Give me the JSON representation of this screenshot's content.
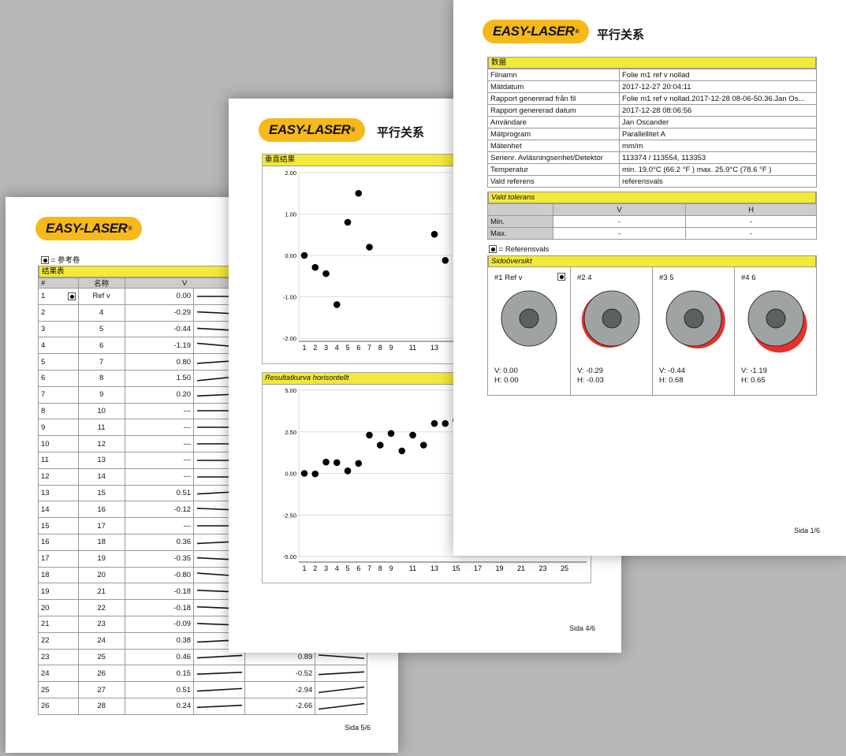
{
  "logo_text": "EASY-LASER",
  "logo_mark": "®",
  "colors": {
    "highlight": "#f2e938",
    "logo": "#f6b919",
    "offset": "#e8302a",
    "outer": "#a0a3a4",
    "inner": "#5d6061"
  },
  "page5": {
    "ref_legend": "= 参考卷",
    "section": "结果表",
    "headers": {
      "num": "#",
      "name": "名称",
      "v": "V"
    },
    "rows": [
      {
        "n": "1",
        "name": "Ref v",
        "v": "0.00",
        "h": "",
        "ref": true
      },
      {
        "n": "2",
        "name": "4",
        "v": "-0.29",
        "h": ""
      },
      {
        "n": "3",
        "name": "5",
        "v": "-0.44",
        "h": ""
      },
      {
        "n": "4",
        "name": "6",
        "v": "-1.19",
        "h": ""
      },
      {
        "n": "5",
        "name": "7",
        "v": "0.80",
        "h": ""
      },
      {
        "n": "6",
        "name": "8",
        "v": "1.50",
        "h": ""
      },
      {
        "n": "7",
        "name": "9",
        "v": "0.20",
        "h": ""
      },
      {
        "n": "8",
        "name": "10",
        "v": "---",
        "h": ""
      },
      {
        "n": "9",
        "name": "11",
        "v": "---",
        "h": ""
      },
      {
        "n": "10",
        "name": "12",
        "v": "---",
        "h": ""
      },
      {
        "n": "11",
        "name": "13",
        "v": "---",
        "h": ""
      },
      {
        "n": "12",
        "name": "14",
        "v": "---",
        "h": ""
      },
      {
        "n": "13",
        "name": "15",
        "v": "0.51",
        "h": ""
      },
      {
        "n": "14",
        "name": "16",
        "v": "-0.12",
        "h": ""
      },
      {
        "n": "15",
        "name": "17",
        "v": "---",
        "h": ""
      },
      {
        "n": "16",
        "name": "18",
        "v": "0.36",
        "h": ""
      },
      {
        "n": "17",
        "name": "19",
        "v": "-0.35",
        "h": ""
      },
      {
        "n": "18",
        "name": "20",
        "v": "-0.80",
        "h": ""
      },
      {
        "n": "19",
        "name": "21",
        "v": "-0.18",
        "h": ""
      },
      {
        "n": "20",
        "name": "22",
        "v": "-0.18",
        "h": ""
      },
      {
        "n": "21",
        "name": "23",
        "v": "-0.09",
        "h": ""
      },
      {
        "n": "22",
        "name": "24",
        "v": "0.38",
        "h": ""
      },
      {
        "n": "23",
        "name": "25",
        "v": "0.46",
        "h": "0.89"
      },
      {
        "n": "24",
        "name": "26",
        "v": "0.15",
        "h": "-0.52"
      },
      {
        "n": "25",
        "name": "27",
        "v": "0.51",
        "h": "-2.94"
      },
      {
        "n": "26",
        "name": "28",
        "v": "0.24",
        "h": "-2.66"
      }
    ],
    "footer": "Sida 5/6"
  },
  "page4": {
    "title": "平行关系",
    "footer": "Sida 4/6"
  },
  "chart_data": [
    {
      "type": "scatter",
      "title": "垂直结果",
      "ylim": [
        -2,
        2
      ],
      "yticks": [
        "2.00",
        "1.00",
        "0.00",
        "-1.00",
        "-2.00"
      ],
      "ytick_values": [
        2,
        1,
        0,
        -1,
        -2
      ],
      "xticks": [
        "1",
        "2",
        "3",
        "4",
        "5",
        "6",
        "7",
        "8",
        "9",
        "11",
        "13"
      ],
      "xtick_values": [
        1,
        2,
        3,
        4,
        5,
        6,
        7,
        8,
        9,
        11,
        13
      ],
      "x": [
        1,
        2,
        3,
        4,
        5,
        6,
        7,
        13,
        14
      ],
      "y": [
        0,
        -0.29,
        -0.44,
        -1.19,
        0.8,
        1.5,
        0.2,
        0.51,
        -0.12
      ],
      "grid": true
    },
    {
      "type": "scatter",
      "title": "Resultatkurva horisontellt",
      "ylim": [
        -5,
        5
      ],
      "yticks": [
        "5.00",
        "2.50",
        "0.00",
        "-2.50",
        "-5.00"
      ],
      "ytick_values": [
        5,
        2.5,
        0,
        -2.5,
        -5
      ],
      "xticks": [
        "1",
        "2",
        "3",
        "4",
        "5",
        "6",
        "7",
        "8",
        "9",
        "11",
        "13",
        "15",
        "17",
        "19",
        "21",
        "23",
        "25"
      ],
      "xtick_values": [
        1,
        2,
        3,
        4,
        5,
        6,
        7,
        8,
        9,
        11,
        13,
        15,
        17,
        19,
        21,
        23,
        25
      ],
      "x": [
        1,
        2,
        3,
        4,
        5,
        6,
        7,
        8,
        9,
        10,
        11,
        12,
        13,
        14,
        15
      ],
      "y": [
        0,
        -0.03,
        0.68,
        0.65,
        0.15,
        0.6,
        2.3,
        1.7,
        2.4,
        1.35,
        2.3,
        1.7,
        3.0,
        3.0,
        3.2
      ],
      "grid": true
    }
  ],
  "page1": {
    "title": "平行关系",
    "data_section": "数据",
    "data_rows": [
      {
        "label": "Filnamn",
        "value": "Folie m1 ref v nollad"
      },
      {
        "label": "Mätdatum",
        "value": "2017-12-27 20:04:11"
      },
      {
        "label": "Rapport genererad från fil",
        "value": "Folie m1 ref v nollad.2017-12-28 08-06-50.36.Jan Os..."
      },
      {
        "label": "Rapport genererad datum",
        "value": "2017-12-28 08:06:56"
      },
      {
        "label": "Användare",
        "value": "Jan Oscander"
      },
      {
        "label": "Mätprogram",
        "value": "Parallellitet A"
      },
      {
        "label": "Mätenhet",
        "value": "mm/m"
      },
      {
        "label": "Serienr. Avläsningsenhet/Detektor",
        "value": "113374 / 113554, 113353"
      },
      {
        "label": "Temperatur",
        "value": "min. 19.0°C (66.2 °F ) max. 25.9°C (78.6 °F )"
      },
      {
        "label": "Vald referens",
        "value": "referensvals"
      }
    ],
    "tolerance": {
      "title": "Vald tolerans",
      "col_v": "V",
      "col_h": "H",
      "rows": [
        {
          "label": "Min.",
          "v": "-",
          "h": "-"
        },
        {
          "label": "Max.",
          "v": "-",
          "h": "-"
        }
      ]
    },
    "ref_legend": "= Referensvals",
    "side_section": "Sidoöversikt",
    "side_items": [
      {
        "label": "#1 Ref v",
        "v_text": "V: 0.00",
        "h_text": "H: 0.00",
        "v": 0,
        "h": 0,
        "ref": true
      },
      {
        "label": "#2 4",
        "v_text": "V: -0.29",
        "h_text": "H: -0.03",
        "v": -0.29,
        "h": -0.03
      },
      {
        "label": "#3 5",
        "v_text": "V: -0.44",
        "h_text": "H: 0.68",
        "v": -0.44,
        "h": 0.68
      },
      {
        "label": "#4 6",
        "v_text": "V: -1.19",
        "h_text": "H: 0.65",
        "v": -1.19,
        "h": 0.65
      }
    ],
    "footer": "Sida 1/6"
  }
}
